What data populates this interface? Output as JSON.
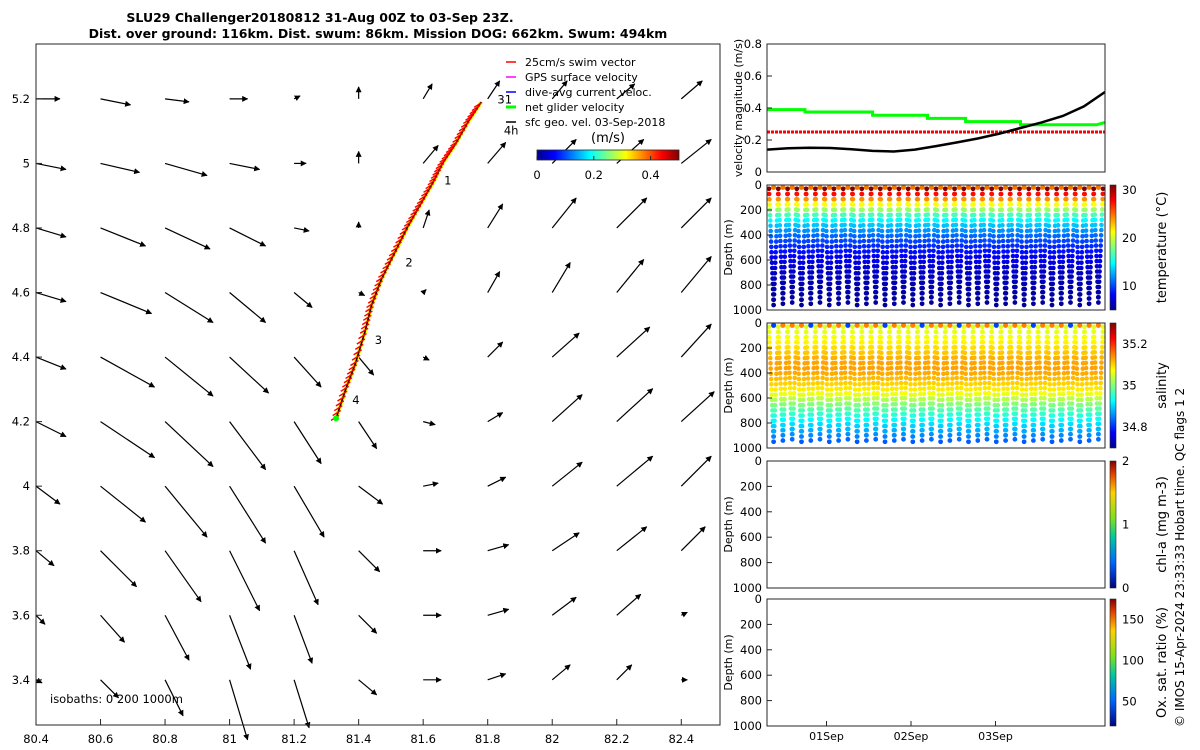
{
  "title": {
    "line1": "SLU29 Challenger20180812 31-Aug 00Z to 03-Sep 23Z.",
    "line2": "Dist. over ground: 116km. Dist. swum: 86km. Mission DOG: 662km. Swum: 494km"
  },
  "side_note": "© IMOS 15-Apr-2024 23:33:33 Hobart time. QC flags 1  2",
  "chart_data": [
    {
      "type": "scatter",
      "name": "map",
      "x_ticks": [
        "80.4",
        "80.6",
        "80.8",
        "81",
        "81.2",
        "81.4",
        "81.6",
        "81.8",
        "82",
        "82.2",
        "82.4"
      ],
      "y_ticks": [
        "5.2",
        "5",
        "4.8",
        "4.6",
        "4.4",
        "4.2",
        "4",
        "3.8",
        "3.6",
        "3.4"
      ],
      "xlim": [
        80.4,
        82.52
      ],
      "ylim": [
        3.26,
        5.37
      ],
      "legend": {
        "placement": "top-right",
        "entries": [
          {
            "label": "25cm/s swim vector",
            "color": "#ff0000"
          },
          {
            "label": "GPS surface velocity",
            "color": "#ff00ff"
          },
          {
            "label": "dive-avg current veloc.",
            "color": "#0000ff"
          },
          {
            "label": "net glider velocity",
            "color": "#00ff00"
          },
          {
            "label": "sfc geo. vel. 03-Sep-2018",
            "color": "#000000"
          }
        ]
      },
      "colorbar": {
        "label": "(m/s)",
        "ticks": [
          "0",
          "0.2",
          "0.4"
        ],
        "range": [
          0,
          0.5
        ]
      },
      "isobath_text": "isobaths: 0   200  1000m",
      "track": {
        "start": [
          81.33,
          4.21
        ],
        "points": [
          [
            81.33,
            4.21
          ],
          [
            81.36,
            4.3
          ],
          [
            81.39,
            4.38
          ],
          [
            81.42,
            4.48
          ],
          [
            81.44,
            4.56
          ],
          [
            81.47,
            4.64
          ],
          [
            81.51,
            4.72
          ],
          [
            81.55,
            4.8
          ],
          [
            81.59,
            4.87
          ],
          [
            81.63,
            4.94
          ],
          [
            81.66,
            5.0
          ],
          [
            81.7,
            5.06
          ],
          [
            81.74,
            5.13
          ],
          [
            81.78,
            5.19
          ]
        ]
      },
      "day_labels": [
        {
          "text": "31",
          "x": 81.83,
          "y": 5.185
        },
        {
          "text": "1",
          "x": 81.665,
          "y": 4.935
        },
        {
          "text": "2",
          "x": 81.545,
          "y": 4.68
        },
        {
          "text": "3",
          "x": 81.45,
          "y": 4.44
        },
        {
          "text": "4",
          "x": 81.38,
          "y": 4.255
        }
      ],
      "end_label": {
        "text": "4h",
        "x": 81.85,
        "y": 5.09
      },
      "vectors": {
        "lon": [
          80.4,
          80.6,
          80.8,
          81.0,
          81.2,
          81.4,
          81.6,
          81.8,
          82.0,
          82.2,
          82.4
        ],
        "lat": [
          5.2,
          5.0,
          4.8,
          4.6,
          4.4,
          4.2,
          4.0,
          3.8,
          3.6,
          3.4
        ],
        "u": [
          [
            0.08,
            0.1,
            0.08,
            0.06,
            0.02,
            0.0,
            0.03,
            0.04,
            0.05,
            0.06,
            0.07
          ],
          [
            0.1,
            0.13,
            0.14,
            0.1,
            0.04,
            0.0,
            0.05,
            0.06,
            0.08,
            0.09,
            0.1
          ],
          [
            0.1,
            0.15,
            0.15,
            0.12,
            0.05,
            0.0,
            0.02,
            0.05,
            0.08,
            0.1,
            0.1
          ],
          [
            0.1,
            0.17,
            0.16,
            0.12,
            0.06,
            0.02,
            0.01,
            0.04,
            0.06,
            0.09,
            0.1
          ],
          [
            0.1,
            0.18,
            0.16,
            0.13,
            0.09,
            0.05,
            0.02,
            0.05,
            0.09,
            0.11,
            0.1
          ],
          [
            0.1,
            0.18,
            0.16,
            0.12,
            0.09,
            0.06,
            0.04,
            0.05,
            0.1,
            0.12,
            0.11
          ],
          [
            0.08,
            0.15,
            0.14,
            0.12,
            0.1,
            0.08,
            0.05,
            0.06,
            0.1,
            0.12,
            0.1
          ],
          [
            0.06,
            0.12,
            0.12,
            0.1,
            0.08,
            0.07,
            0.06,
            0.07,
            0.09,
            0.1,
            0.08
          ],
          [
            0.03,
            0.08,
            0.08,
            0.07,
            0.06,
            0.06,
            0.06,
            0.07,
            0.08,
            0.08,
            0.02
          ],
          [
            0.02,
            0.06,
            0.06,
            0.06,
            0.05,
            0.06,
            0.06,
            0.06,
            0.06,
            0.05,
            0.02
          ]
        ],
        "v": [
          [
            0.0,
            -0.02,
            -0.01,
            0.0,
            0.01,
            0.04,
            0.05,
            0.06,
            0.06,
            0.05,
            0.06
          ],
          [
            -0.02,
            -0.03,
            -0.04,
            -0.02,
            0.0,
            0.04,
            0.06,
            0.07,
            0.08,
            0.08,
            0.08
          ],
          [
            -0.03,
            -0.06,
            -0.07,
            -0.06,
            -0.01,
            0.02,
            0.06,
            0.08,
            0.1,
            0.1,
            0.1
          ],
          [
            -0.03,
            -0.07,
            -0.1,
            -0.1,
            -0.05,
            -0.01,
            0.01,
            0.07,
            0.1,
            0.11,
            0.12
          ],
          [
            -0.04,
            -0.1,
            -0.13,
            -0.12,
            -0.1,
            -0.06,
            -0.01,
            0.05,
            0.08,
            0.1,
            0.11
          ],
          [
            -0.05,
            -0.12,
            -0.15,
            -0.16,
            -0.14,
            -0.09,
            -0.01,
            0.03,
            0.09,
            0.11,
            0.1
          ],
          [
            -0.06,
            -0.12,
            -0.17,
            -0.19,
            -0.17,
            -0.06,
            0.01,
            0.03,
            0.08,
            0.1,
            0.1
          ],
          [
            -0.05,
            -0.12,
            -0.17,
            -0.2,
            -0.18,
            -0.07,
            0.0,
            0.02,
            0.06,
            0.08,
            0.08
          ],
          [
            -0.03,
            -0.09,
            -0.15,
            -0.18,
            -0.16,
            -0.06,
            0.0,
            0.02,
            0.06,
            0.07,
            0.01
          ],
          [
            -0.01,
            -0.06,
            -0.12,
            -0.2,
            -0.16,
            -0.05,
            0.0,
            0.02,
            0.05,
            0.05,
            0.0
          ]
        ]
      }
    },
    {
      "type": "line",
      "name": "velocity",
      "ylabel": "velocity magnitude (m/s)",
      "y_ticks": [
        "0",
        "0.2",
        "0.4",
        "0.6",
        "0.8"
      ],
      "ylim": [
        0,
        0.8
      ],
      "xlim": [
        0,
        4
      ],
      "series": [
        {
          "color": "#00ff00",
          "x": [
            0,
            0.45,
            0.45,
            1.25,
            1.25,
            1.9,
            1.9,
            2.35,
            2.35,
            3.0,
            3.0,
            3.9,
            4.0
          ],
          "y": [
            0.39,
            0.39,
            0.375,
            0.375,
            0.355,
            0.355,
            0.335,
            0.335,
            0.315,
            0.315,
            0.295,
            0.295,
            0.31
          ]
        },
        {
          "color": "#ff0000",
          "x": [
            0,
            4
          ],
          "y": [
            0.25,
            0.25
          ]
        },
        {
          "color": "#000000",
          "x": [
            0,
            0.25,
            0.5,
            0.75,
            1.0,
            1.25,
            1.5,
            1.75,
            2.0,
            2.25,
            2.5,
            2.75,
            3.0,
            3.25,
            3.5,
            3.75,
            4.0
          ],
          "y": [
            0.14,
            0.148,
            0.152,
            0.15,
            0.142,
            0.132,
            0.128,
            0.14,
            0.162,
            0.185,
            0.21,
            0.24,
            0.275,
            0.31,
            0.35,
            0.41,
            0.5
          ]
        }
      ]
    },
    {
      "type": "scatter",
      "name": "temperature",
      "ylabel": "Depth (m)",
      "y_ticks": [
        "0",
        "200",
        "400",
        "600",
        "800",
        "1000"
      ],
      "ylim": [
        0,
        1000
      ],
      "colorbar": {
        "label": "temperature (°C)",
        "ticks": [
          "10",
          "20",
          "30"
        ],
        "range": [
          5,
          31
        ]
      },
      "dives": 36
    },
    {
      "type": "scatter",
      "name": "salinity",
      "ylabel": "Depth (m)",
      "y_ticks": [
        "0",
        "200",
        "400",
        "600",
        "800",
        "1000"
      ],
      "ylim": [
        0,
        1000
      ],
      "colorbar": {
        "label": "salinity",
        "ticks": [
          "34.8",
          "35",
          "35.2"
        ],
        "range": [
          34.7,
          35.3
        ]
      },
      "dives": 36
    },
    {
      "type": "scatter",
      "name": "chla",
      "ylabel": "Depth (m)",
      "y_ticks": [
        "0",
        "200",
        "400",
        "600",
        "800",
        "1000"
      ],
      "ylim": [
        0,
        1000
      ],
      "colorbar": {
        "label": "chl-a (mg m-3)",
        "ticks": [
          "0",
          "1",
          "2"
        ],
        "range": [
          0,
          2
        ]
      }
    },
    {
      "type": "scatter",
      "name": "oxygen",
      "ylabel": "Depth (m)",
      "y_ticks": [
        "0",
        "200",
        "400",
        "600",
        "800",
        "1000"
      ],
      "ylim": [
        0,
        1000
      ],
      "x_ticks": [
        "01Sep",
        "02Sep",
        "03Sep"
      ],
      "colorbar": {
        "label": "Ox. sat. ratio (%)",
        "ticks": [
          "50",
          "100",
          "150"
        ],
        "range": [
          20,
          175
        ]
      }
    }
  ]
}
